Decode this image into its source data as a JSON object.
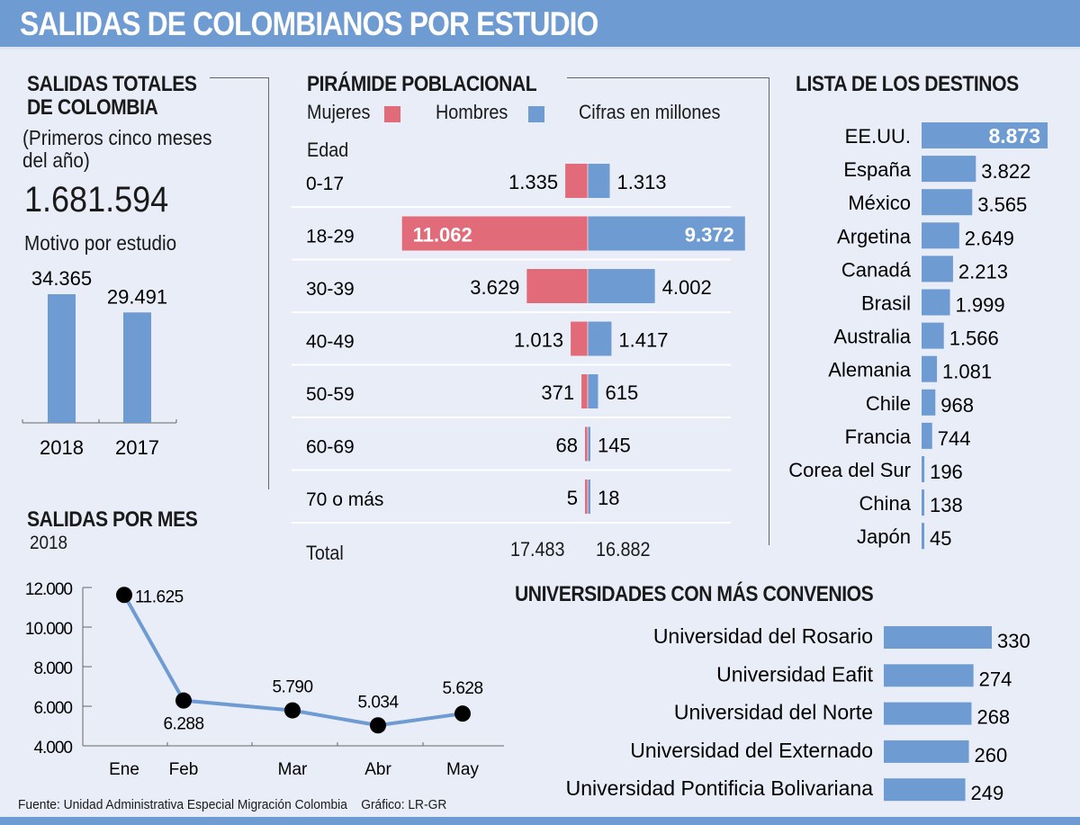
{
  "header": {
    "title": "SALIDAS DE COLOMBIANOS POR ESTUDIO"
  },
  "colors": {
    "blue": "#6d9bd2",
    "red": "#e26b7a",
    "background": "#e9edf7",
    "white": "#ffffff",
    "text": "#1a1a1a"
  },
  "totales": {
    "title_line1": "SALIDAS TOTALES",
    "title_line2": "DE COLOMBIA",
    "subtitle_line1": "(Primeros cinco meses",
    "subtitle_line2": "del año)",
    "total": "1.681.594",
    "motivo_label": "Motivo por estudio"
  },
  "salidas_mes": {
    "title": "SALIDAS POR MES",
    "year": "2018"
  },
  "piramide": {
    "title": "PIRÁMIDE POBLACIONAL",
    "legend_mujeres": "Mujeres",
    "legend_hombres": "Hombres",
    "units_note": "Cifras en millones",
    "edad_label": "Edad",
    "total_label": "Total",
    "total_mujeres": "17.483",
    "total_hombres": "16.882"
  },
  "destinos": {
    "title": "LISTA DE LOS DESTINOS"
  },
  "universidades": {
    "title": "UNIVERSIDADES CON MÁS CONVENIOS"
  },
  "footer": {
    "source": "Fuente: Unidad Administrativa Especial Migración Colombia",
    "credit": "Gráfico: LR-GR"
  },
  "chart_data": [
    {
      "id": "motivo-estudio",
      "type": "bar",
      "title": "Motivo por estudio",
      "categories": [
        "2018",
        "2017"
      ],
      "values": [
        34365,
        29491
      ],
      "labels": [
        "34.365",
        "29.491"
      ]
    },
    {
      "id": "piramide",
      "type": "bar",
      "orientation": "horizontal-diverging",
      "title": "PIRÁMIDE POBLACIONAL",
      "categories": [
        "0-17",
        "18-29",
        "30-39",
        "40-49",
        "50-59",
        "60-69",
        "70 o más"
      ],
      "series": [
        {
          "name": "Mujeres",
          "color": "#e26b7a",
          "values": [
            1.335,
            11.062,
            3.629,
            1.013,
            0.371,
            0.068,
            0.005
          ],
          "labels": [
            "1.335",
            "11.062",
            "3.629",
            "1.013",
            "371",
            "68",
            "5"
          ]
        },
        {
          "name": "Hombres",
          "color": "#6d9bd2",
          "values": [
            1.313,
            9.372,
            4.002,
            1.417,
            0.615,
            0.145,
            0.018
          ],
          "labels": [
            "1.313",
            "9.372",
            "4.002",
            "1.417",
            "615",
            "145",
            "18"
          ]
        }
      ],
      "totals": {
        "Mujeres": "17.483",
        "Hombres": "16.882"
      }
    },
    {
      "id": "destinos",
      "type": "bar",
      "orientation": "horizontal",
      "title": "LISTA DE LOS DESTINOS",
      "categories": [
        "EE.UU.",
        "España",
        "México",
        "Argetina",
        "Canadá",
        "Brasil",
        "Australia",
        "Alemania",
        "Chile",
        "Francia",
        "Corea del Sur",
        "China",
        "Japón"
      ],
      "values": [
        8873,
        3822,
        3565,
        2649,
        2213,
        1999,
        1566,
        1081,
        968,
        744,
        196,
        138,
        45
      ],
      "labels": [
        "8.873",
        "3.822",
        "3.565",
        "2.649",
        "2.213",
        "1.999",
        "1.566",
        "1.081",
        "968",
        "744",
        "196",
        "138",
        "45"
      ]
    },
    {
      "id": "salidas-mes",
      "type": "line",
      "title": "SALIDAS POR MES",
      "subtitle": "2018",
      "x": [
        "Ene",
        "Feb",
        "Mar",
        "Abr",
        "May"
      ],
      "values": [
        11625,
        6288,
        5790,
        5034,
        5628
      ],
      "labels": [
        "11.625",
        "6.288",
        "5.790",
        "5.034",
        "5.628"
      ],
      "ylim": [
        4000,
        12000
      ],
      "yticks": [
        4000,
        6000,
        8000,
        10000,
        12000
      ],
      "ytick_labels": [
        "4.000",
        "6.000",
        "8.000",
        "10.000",
        "12.000"
      ],
      "grid": false
    },
    {
      "id": "universidades",
      "type": "bar",
      "orientation": "horizontal",
      "title": "UNIVERSIDADES CON MÁS CONVENIOS",
      "categories": [
        "Universidad del Rosario",
        "Universidad Eafit",
        "Universidad del Norte",
        "Universidad del Externado",
        "Universidad Pontificia Bolivariana"
      ],
      "values": [
        330,
        274,
        268,
        260,
        249
      ],
      "labels": [
        "330",
        "274",
        "268",
        "260",
        "249"
      ]
    }
  ]
}
